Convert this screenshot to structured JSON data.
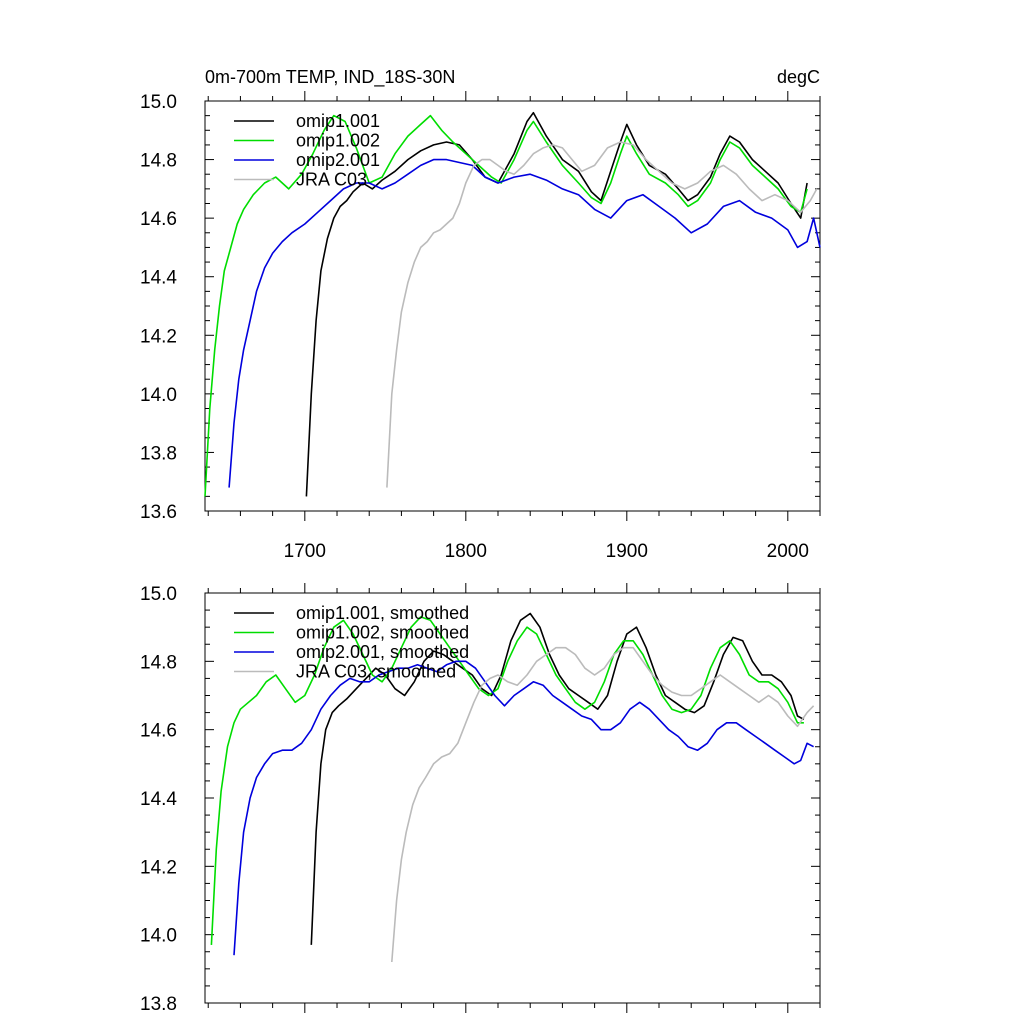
{
  "chart_data": [
    {
      "type": "line",
      "title_left": "0m-700m TEMP, IND_18S-30N",
      "title_right": "degC",
      "xlabel": "",
      "ylabel": "",
      "xlim": [
        1638,
        2020
      ],
      "ylim": [
        13.6,
        15.0
      ],
      "x_ticks": [
        1700,
        1800,
        1900,
        2000
      ],
      "x_tick_labels": [
        "1700",
        "1800",
        "1900",
        "2000"
      ],
      "y_ticks": [
        13.6,
        13.8,
        14.0,
        14.2,
        14.4,
        14.6,
        14.8,
        15.0
      ],
      "y_tick_labels": [
        "13.6",
        "13.8",
        "14.0",
        "14.2",
        "14.4",
        "14.6",
        "14.8",
        "15.0"
      ],
      "legend_placement": "top-left",
      "series": [
        {
          "name": "omip1.001",
          "color": "#000000",
          "x": [
            1701,
            1704,
            1707,
            1710,
            1714,
            1718,
            1722,
            1726,
            1730,
            1736,
            1742,
            1748,
            1756,
            1764,
            1772,
            1780,
            1788,
            1796,
            1804,
            1812,
            1820,
            1830,
            1838,
            1842,
            1850,
            1860,
            1870,
            1878,
            1884,
            1890,
            1896,
            1900,
            1906,
            1914,
            1924,
            1932,
            1938,
            1944,
            1952,
            1958,
            1964,
            1970,
            1978,
            1986,
            1994,
            2002,
            2008,
            2012
          ],
          "y": [
            13.65,
            14.0,
            14.25,
            14.42,
            14.53,
            14.6,
            14.64,
            14.66,
            14.69,
            14.72,
            14.7,
            14.73,
            14.76,
            14.8,
            14.83,
            14.85,
            14.86,
            14.85,
            14.8,
            14.74,
            14.72,
            14.82,
            14.93,
            14.96,
            14.88,
            14.8,
            14.76,
            14.69,
            14.66,
            14.76,
            14.86,
            14.92,
            14.85,
            14.78,
            14.75,
            14.7,
            14.66,
            14.68,
            14.74,
            14.82,
            14.88,
            14.86,
            14.8,
            14.76,
            14.72,
            14.65,
            14.6,
            14.72
          ]
        },
        {
          "name": "omip1.002",
          "color": "#00dd00",
          "x": [
            1638,
            1641,
            1644,
            1647,
            1650,
            1654,
            1658,
            1662,
            1668,
            1675,
            1682,
            1690,
            1698,
            1705,
            1712,
            1718,
            1725,
            1732,
            1740,
            1748,
            1756,
            1764,
            1772,
            1778,
            1785,
            1792,
            1800,
            1808,
            1816,
            1822,
            1830,
            1838,
            1842,
            1850,
            1860,
            1870,
            1878,
            1884,
            1890,
            1896,
            1900,
            1906,
            1914,
            1924,
            1932,
            1938,
            1944,
            1952,
            1958,
            1964,
            1970,
            1978,
            1986,
            1994,
            2002,
            2008,
            2012
          ],
          "y": [
            13.65,
            13.95,
            14.15,
            14.3,
            14.42,
            14.5,
            14.58,
            14.63,
            14.68,
            14.72,
            14.74,
            14.7,
            14.75,
            14.82,
            14.9,
            14.95,
            14.93,
            14.84,
            14.72,
            14.74,
            14.82,
            14.88,
            14.92,
            14.95,
            14.9,
            14.86,
            14.82,
            14.78,
            14.74,
            14.72,
            14.8,
            14.9,
            14.93,
            14.86,
            14.78,
            14.72,
            14.67,
            14.65,
            14.72,
            14.82,
            14.88,
            14.82,
            14.75,
            14.72,
            14.68,
            14.64,
            14.66,
            14.72,
            14.8,
            14.86,
            14.84,
            14.78,
            14.74,
            14.7,
            14.64,
            14.62,
            14.7
          ]
        },
        {
          "name": "omip2.001",
          "color": "#0000dd",
          "x": [
            1653,
            1656,
            1659,
            1662,
            1666,
            1670,
            1675,
            1680,
            1686,
            1692,
            1700,
            1708,
            1716,
            1724,
            1732,
            1740,
            1748,
            1756,
            1764,
            1772,
            1780,
            1788,
            1796,
            1804,
            1812,
            1820,
            1830,
            1840,
            1850,
            1860,
            1870,
            1880,
            1890,
            1900,
            1910,
            1920,
            1930,
            1940,
            1950,
            1960,
            1970,
            1980,
            1990,
            2000,
            2006,
            2012,
            2016,
            2020
          ],
          "y": [
            13.68,
            13.9,
            14.05,
            14.15,
            14.25,
            14.35,
            14.43,
            14.48,
            14.52,
            14.55,
            14.58,
            14.62,
            14.66,
            14.7,
            14.72,
            14.72,
            14.7,
            14.72,
            14.75,
            14.78,
            14.8,
            14.8,
            14.79,
            14.78,
            14.74,
            14.72,
            14.74,
            14.75,
            14.73,
            14.7,
            14.68,
            14.63,
            14.6,
            14.66,
            14.68,
            14.64,
            14.6,
            14.55,
            14.58,
            14.64,
            14.66,
            14.62,
            14.6,
            14.56,
            14.5,
            14.52,
            14.6,
            14.5
          ]
        },
        {
          "name": "JRA C03",
          "color": "#bbbbbb",
          "x": [
            1751,
            1754,
            1757,
            1760,
            1764,
            1768,
            1772,
            1776,
            1780,
            1784,
            1788,
            1792,
            1796,
            1800,
            1805,
            1810,
            1815,
            1820,
            1825,
            1830,
            1836,
            1842,
            1848,
            1854,
            1860,
            1866,
            1872,
            1880,
            1888,
            1896,
            1904,
            1912,
            1920,
            1928,
            1936,
            1944,
            1952,
            1960,
            1968,
            1976,
            1984,
            1992,
            2000,
            2008,
            2014,
            2018
          ],
          "y": [
            13.68,
            14.0,
            14.15,
            14.28,
            14.38,
            14.45,
            14.5,
            14.52,
            14.55,
            14.56,
            14.58,
            14.6,
            14.65,
            14.72,
            14.78,
            14.8,
            14.8,
            14.78,
            14.76,
            14.75,
            14.78,
            14.82,
            14.84,
            14.85,
            14.84,
            14.8,
            14.76,
            14.78,
            14.84,
            14.86,
            14.85,
            14.8,
            14.76,
            14.72,
            14.7,
            14.72,
            14.76,
            14.78,
            14.75,
            14.7,
            14.66,
            14.68,
            14.66,
            14.62,
            14.66,
            14.7
          ]
        }
      ]
    },
    {
      "type": "line",
      "title_left": "",
      "title_right": "",
      "xlabel": "",
      "ylabel": "",
      "xlim": [
        1638,
        2020
      ],
      "ylim": [
        13.8,
        15.0
      ],
      "x_ticks": [
        1700,
        1800,
        1900,
        2000
      ],
      "x_tick_labels": [],
      "y_ticks": [
        13.8,
        14.0,
        14.2,
        14.4,
        14.6,
        14.8,
        15.0
      ],
      "y_tick_labels": [
        "13.8",
        "14.0",
        "14.2",
        "14.4",
        "14.6",
        "14.8",
        "15.0"
      ],
      "legend_placement": "top-left",
      "series": [
        {
          "name": "omip1.001, smoothed",
          "color": "#000000",
          "x": [
            1704,
            1707,
            1710,
            1713,
            1717,
            1721,
            1726,
            1732,
            1738,
            1744,
            1750,
            1756,
            1762,
            1768,
            1774,
            1780,
            1786,
            1792,
            1798,
            1804,
            1810,
            1816,
            1822,
            1828,
            1834,
            1840,
            1846,
            1852,
            1858,
            1864,
            1870,
            1876,
            1882,
            1888,
            1894,
            1900,
            1906,
            1912,
            1918,
            1924,
            1930,
            1936,
            1942,
            1948,
            1954,
            1960,
            1966,
            1972,
            1978,
            1984,
            1990,
            1996,
            2002,
            2006,
            2010
          ],
          "y": [
            13.97,
            14.3,
            14.5,
            14.6,
            14.65,
            14.67,
            14.69,
            14.72,
            14.75,
            14.78,
            14.76,
            14.72,
            14.7,
            14.74,
            14.8,
            14.83,
            14.82,
            14.8,
            14.78,
            14.76,
            14.72,
            14.7,
            14.76,
            14.86,
            14.92,
            14.94,
            14.9,
            14.82,
            14.76,
            14.72,
            14.7,
            14.68,
            14.66,
            14.7,
            14.8,
            14.88,
            14.9,
            14.84,
            14.76,
            14.7,
            14.68,
            14.66,
            14.65,
            14.67,
            14.74,
            14.82,
            14.87,
            14.86,
            14.8,
            14.76,
            14.76,
            14.74,
            14.7,
            14.64,
            14.63
          ]
        },
        {
          "name": "omip1.002, smoothed",
          "color": "#00dd00",
          "x": [
            1642,
            1645,
            1648,
            1652,
            1656,
            1660,
            1665,
            1670,
            1676,
            1682,
            1688,
            1694,
            1700,
            1706,
            1712,
            1718,
            1724,
            1730,
            1736,
            1742,
            1748,
            1754,
            1760,
            1766,
            1772,
            1778,
            1784,
            1790,
            1796,
            1802,
            1808,
            1814,
            1820,
            1826,
            1832,
            1838,
            1844,
            1850,
            1856,
            1862,
            1868,
            1874,
            1880,
            1886,
            1892,
            1898,
            1904,
            1910,
            1916,
            1922,
            1928,
            1934,
            1940,
            1946,
            1952,
            1958,
            1964,
            1970,
            1976,
            1982,
            1988,
            1994,
            2000,
            2006,
            2010
          ],
          "y": [
            13.97,
            14.25,
            14.42,
            14.55,
            14.62,
            14.66,
            14.68,
            14.7,
            14.74,
            14.76,
            14.72,
            14.68,
            14.7,
            14.76,
            14.84,
            14.9,
            14.92,
            14.88,
            14.82,
            14.76,
            14.74,
            14.78,
            14.84,
            14.9,
            14.93,
            14.92,
            14.88,
            14.84,
            14.8,
            14.76,
            14.72,
            14.7,
            14.72,
            14.8,
            14.86,
            14.9,
            14.88,
            14.82,
            14.76,
            14.72,
            14.68,
            14.66,
            14.68,
            14.74,
            14.82,
            14.86,
            14.86,
            14.82,
            14.76,
            14.7,
            14.66,
            14.65,
            14.66,
            14.7,
            14.78,
            14.84,
            14.86,
            14.82,
            14.76,
            14.74,
            14.74,
            14.72,
            14.68,
            14.62,
            14.62
          ]
        },
        {
          "name": "omip2.001, smoothed",
          "color": "#0000dd",
          "x": [
            1656,
            1659,
            1662,
            1666,
            1670,
            1675,
            1680,
            1686,
            1692,
            1698,
            1704,
            1710,
            1716,
            1722,
            1728,
            1734,
            1740,
            1746,
            1752,
            1758,
            1764,
            1770,
            1776,
            1782,
            1788,
            1794,
            1800,
            1806,
            1812,
            1818,
            1824,
            1830,
            1836,
            1842,
            1848,
            1854,
            1860,
            1866,
            1872,
            1878,
            1884,
            1890,
            1896,
            1902,
            1908,
            1914,
            1920,
            1926,
            1932,
            1938,
            1944,
            1950,
            1956,
            1962,
            1968,
            1974,
            1980,
            1986,
            1992,
            1998,
            2004,
            2008,
            2012,
            2016
          ],
          "y": [
            13.94,
            14.15,
            14.3,
            14.4,
            14.46,
            14.5,
            14.53,
            14.54,
            14.54,
            14.56,
            14.6,
            14.66,
            14.7,
            14.73,
            14.75,
            14.74,
            14.74,
            14.76,
            14.77,
            14.78,
            14.78,
            14.79,
            14.78,
            14.77,
            14.79,
            14.8,
            14.8,
            14.78,
            14.74,
            14.7,
            14.67,
            14.7,
            14.72,
            14.74,
            14.73,
            14.7,
            14.68,
            14.66,
            14.64,
            14.63,
            14.6,
            14.6,
            14.62,
            14.66,
            14.68,
            14.66,
            14.63,
            14.6,
            14.58,
            14.55,
            14.54,
            14.56,
            14.6,
            14.62,
            14.62,
            14.6,
            14.58,
            14.56,
            14.54,
            14.52,
            14.5,
            14.51,
            14.56,
            14.55
          ]
        },
        {
          "name": "JRA C03, smoothed",
          "color": "#bbbbbb",
          "x": [
            1754,
            1757,
            1760,
            1763,
            1767,
            1771,
            1775,
            1780,
            1785,
            1790,
            1795,
            1800,
            1805,
            1810,
            1815,
            1820,
            1826,
            1832,
            1838,
            1844,
            1850,
            1856,
            1862,
            1868,
            1874,
            1880,
            1886,
            1892,
            1898,
            1904,
            1910,
            1916,
            1922,
            1928,
            1934,
            1940,
            1946,
            1952,
            1958,
            1964,
            1970,
            1976,
            1982,
            1988,
            1994,
            2000,
            2006,
            2012,
            2016
          ],
          "y": [
            13.92,
            14.1,
            14.22,
            14.3,
            14.38,
            14.43,
            14.46,
            14.5,
            14.52,
            14.53,
            14.56,
            14.62,
            14.68,
            14.73,
            14.75,
            14.76,
            14.74,
            14.73,
            14.76,
            14.8,
            14.82,
            14.84,
            14.84,
            14.82,
            14.78,
            14.76,
            14.78,
            14.82,
            14.84,
            14.84,
            14.8,
            14.76,
            14.73,
            14.71,
            14.7,
            14.7,
            14.72,
            14.74,
            14.76,
            14.74,
            14.72,
            14.7,
            14.68,
            14.7,
            14.68,
            14.64,
            14.61,
            14.65,
            14.67
          ]
        }
      ]
    }
  ]
}
